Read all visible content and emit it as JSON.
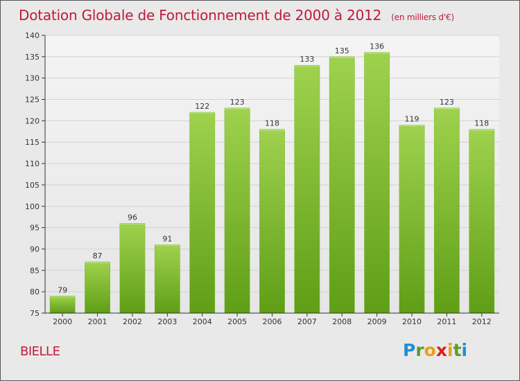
{
  "title": "Dotation Globale de Fonctionnement de 2000 à 2012",
  "subtitle": "(en milliers d'€)",
  "commune": "BIELLE",
  "logo": {
    "letters": [
      "P",
      "r",
      "o",
      "x",
      "i",
      "t",
      "i"
    ],
    "colors": [
      "#1f8fd6",
      "#5a9e2e",
      "#e8a11a",
      "#d62020",
      "#e8a11a",
      "#5a9e2e",
      "#1f8fd6"
    ]
  },
  "colors": {
    "bar": "#8cc63f",
    "bar_dark": "#5a9a12",
    "title": "#c0193b",
    "axis": "#333333"
  },
  "chart_data": {
    "type": "bar",
    "categories": [
      "2000",
      "2001",
      "2002",
      "2003",
      "2004",
      "2005",
      "2006",
      "2007",
      "2008",
      "2009",
      "2010",
      "2011",
      "2012"
    ],
    "values": [
      79,
      87,
      96,
      91,
      122,
      123,
      118,
      133,
      135,
      136,
      119,
      123,
      118
    ],
    "ylim": [
      75,
      140
    ],
    "yticks": [
      75,
      80,
      85,
      90,
      95,
      100,
      105,
      110,
      115,
      120,
      125,
      130,
      135,
      140
    ],
    "grid": true
  }
}
